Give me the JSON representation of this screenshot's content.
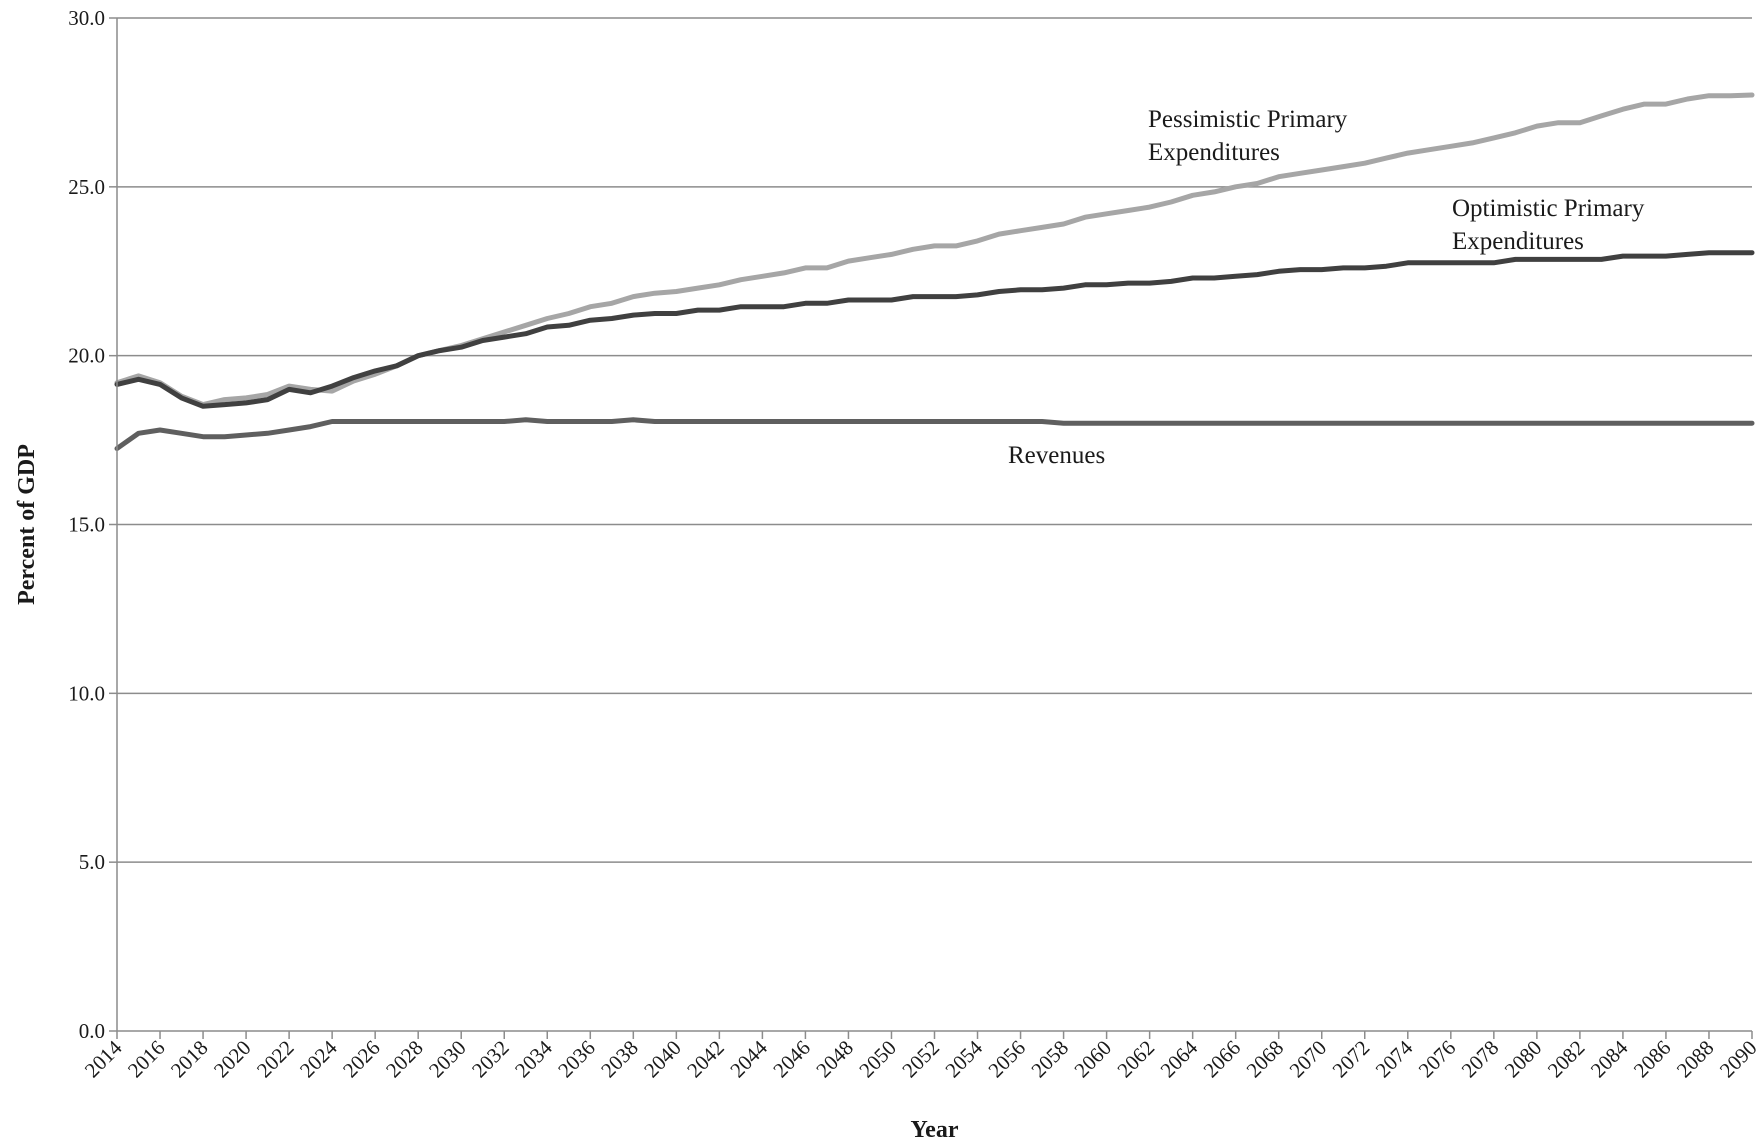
{
  "chart_data": {
    "type": "line",
    "title": "",
    "xlabel": "Year",
    "ylabel": "Percent of GDP",
    "xlim": [
      2014,
      2090
    ],
    "ylim": [
      0,
      30
    ],
    "y_ticks": [
      "0.0",
      "5.0",
      "10.0",
      "15.0",
      "20.0",
      "25.0",
      "30.0"
    ],
    "x_ticks": [
      "2014",
      "2016",
      "2018",
      "2020",
      "2022",
      "2024",
      "2026",
      "2028",
      "2030",
      "2032",
      "2034",
      "2036",
      "2038",
      "2040",
      "2042",
      "2044",
      "2046",
      "2048",
      "2050",
      "2052",
      "2054",
      "2056",
      "2058",
      "2060",
      "2062",
      "2064",
      "2066",
      "2068",
      "2070",
      "2072",
      "2074",
      "2076",
      "2078",
      "2080",
      "2082",
      "2084",
      "2086",
      "2088",
      "2090"
    ],
    "grid": "horizontal",
    "legend": "none",
    "series": [
      {
        "name": "Pessimistic Primary Expenditures",
        "label_lines": [
          "Pessimistic Primary",
          "Expenditures"
        ],
        "color": "#a6a6a6",
        "points": [
          [
            2014,
            19.2
          ],
          [
            2015,
            19.4
          ],
          [
            2016,
            19.2
          ],
          [
            2017,
            18.8
          ],
          [
            2018,
            18.55
          ],
          [
            2019,
            18.7
          ],
          [
            2020,
            18.75
          ],
          [
            2021,
            18.85
          ],
          [
            2022,
            19.1
          ],
          [
            2023,
            19.0
          ],
          [
            2024,
            18.95
          ],
          [
            2025,
            19.25
          ],
          [
            2026,
            19.45
          ],
          [
            2027,
            19.7
          ],
          [
            2028,
            20.0
          ],
          [
            2029,
            20.15
          ],
          [
            2030,
            20.3
          ],
          [
            2031,
            20.5
          ],
          [
            2032,
            20.7
          ],
          [
            2033,
            20.9
          ],
          [
            2034,
            21.1
          ],
          [
            2035,
            21.25
          ],
          [
            2036,
            21.45
          ],
          [
            2037,
            21.55
          ],
          [
            2038,
            21.75
          ],
          [
            2039,
            21.85
          ],
          [
            2040,
            21.9
          ],
          [
            2041,
            22.0
          ],
          [
            2042,
            22.1
          ],
          [
            2043,
            22.25
          ],
          [
            2044,
            22.35
          ],
          [
            2045,
            22.45
          ],
          [
            2046,
            22.6
          ],
          [
            2047,
            22.6
          ],
          [
            2048,
            22.8
          ],
          [
            2049,
            22.9
          ],
          [
            2050,
            23.0
          ],
          [
            2051,
            23.15
          ],
          [
            2052,
            23.25
          ],
          [
            2053,
            23.25
          ],
          [
            2054,
            23.4
          ],
          [
            2055,
            23.6
          ],
          [
            2056,
            23.7
          ],
          [
            2057,
            23.8
          ],
          [
            2058,
            23.9
          ],
          [
            2059,
            24.1
          ],
          [
            2060,
            24.2
          ],
          [
            2061,
            24.3
          ],
          [
            2062,
            24.4
          ],
          [
            2063,
            24.55
          ],
          [
            2064,
            24.75
          ],
          [
            2065,
            24.85
          ],
          [
            2066,
            25.0
          ],
          [
            2067,
            25.1
          ],
          [
            2068,
            25.3
          ],
          [
            2069,
            25.4
          ],
          [
            2070,
            25.5
          ],
          [
            2071,
            25.6
          ],
          [
            2072,
            25.7
          ],
          [
            2073,
            25.85
          ],
          [
            2074,
            26.0
          ],
          [
            2075,
            26.1
          ],
          [
            2076,
            26.2
          ],
          [
            2077,
            26.3
          ],
          [
            2078,
            26.45
          ],
          [
            2079,
            26.6
          ],
          [
            2080,
            26.8
          ],
          [
            2081,
            26.9
          ],
          [
            2082,
            26.9
          ],
          [
            2083,
            27.1
          ],
          [
            2084,
            27.3
          ],
          [
            2085,
            27.45
          ],
          [
            2086,
            27.45
          ],
          [
            2087,
            27.6
          ],
          [
            2088,
            27.7
          ],
          [
            2089,
            27.7
          ],
          [
            2090,
            27.72
          ]
        ]
      },
      {
        "name": "Optimistic Primary Expenditures",
        "label_lines": [
          "Optimistic Primary",
          "Expenditures"
        ],
        "color": "#404040",
        "points": [
          [
            2014,
            19.15
          ],
          [
            2015,
            19.3
          ],
          [
            2016,
            19.15
          ],
          [
            2017,
            18.75
          ],
          [
            2018,
            18.5
          ],
          [
            2019,
            18.55
          ],
          [
            2020,
            18.6
          ],
          [
            2021,
            18.7
          ],
          [
            2022,
            19.0
          ],
          [
            2023,
            18.9
          ],
          [
            2024,
            19.1
          ],
          [
            2025,
            19.35
          ],
          [
            2026,
            19.55
          ],
          [
            2027,
            19.7
          ],
          [
            2028,
            20.0
          ],
          [
            2029,
            20.15
          ],
          [
            2030,
            20.25
          ],
          [
            2031,
            20.45
          ],
          [
            2032,
            20.55
          ],
          [
            2033,
            20.65
          ],
          [
            2034,
            20.85
          ],
          [
            2035,
            20.9
          ],
          [
            2036,
            21.05
          ],
          [
            2037,
            21.1
          ],
          [
            2038,
            21.2
          ],
          [
            2039,
            21.25
          ],
          [
            2040,
            21.25
          ],
          [
            2041,
            21.35
          ],
          [
            2042,
            21.35
          ],
          [
            2043,
            21.45
          ],
          [
            2044,
            21.45
          ],
          [
            2045,
            21.45
          ],
          [
            2046,
            21.55
          ],
          [
            2047,
            21.55
          ],
          [
            2048,
            21.65
          ],
          [
            2049,
            21.65
          ],
          [
            2050,
            21.65
          ],
          [
            2051,
            21.75
          ],
          [
            2052,
            21.75
          ],
          [
            2053,
            21.75
          ],
          [
            2054,
            21.8
          ],
          [
            2055,
            21.9
          ],
          [
            2056,
            21.95
          ],
          [
            2057,
            21.95
          ],
          [
            2058,
            22.0
          ],
          [
            2059,
            22.1
          ],
          [
            2060,
            22.1
          ],
          [
            2061,
            22.15
          ],
          [
            2062,
            22.15
          ],
          [
            2063,
            22.2
          ],
          [
            2064,
            22.3
          ],
          [
            2065,
            22.3
          ],
          [
            2066,
            22.35
          ],
          [
            2067,
            22.4
          ],
          [
            2068,
            22.5
          ],
          [
            2069,
            22.55
          ],
          [
            2070,
            22.55
          ],
          [
            2071,
            22.6
          ],
          [
            2072,
            22.6
          ],
          [
            2073,
            22.65
          ],
          [
            2074,
            22.75
          ],
          [
            2075,
            22.75
          ],
          [
            2076,
            22.75
          ],
          [
            2077,
            22.75
          ],
          [
            2078,
            22.75
          ],
          [
            2079,
            22.85
          ],
          [
            2080,
            22.85
          ],
          [
            2081,
            22.85
          ],
          [
            2082,
            22.85
          ],
          [
            2083,
            22.85
          ],
          [
            2084,
            22.95
          ],
          [
            2085,
            22.95
          ],
          [
            2086,
            22.95
          ],
          [
            2087,
            23.0
          ],
          [
            2088,
            23.05
          ],
          [
            2089,
            23.05
          ],
          [
            2090,
            23.05
          ]
        ]
      },
      {
        "name": "Revenues",
        "label_lines": [
          "Revenues"
        ],
        "color": "#5f5f5f",
        "points": [
          [
            2014,
            17.25
          ],
          [
            2015,
            17.7
          ],
          [
            2016,
            17.8
          ],
          [
            2017,
            17.7
          ],
          [
            2018,
            17.6
          ],
          [
            2019,
            17.6
          ],
          [
            2020,
            17.65
          ],
          [
            2021,
            17.7
          ],
          [
            2022,
            17.8
          ],
          [
            2023,
            17.9
          ],
          [
            2024,
            18.05
          ],
          [
            2025,
            18.05
          ],
          [
            2026,
            18.05
          ],
          [
            2027,
            18.05
          ],
          [
            2028,
            18.05
          ],
          [
            2029,
            18.05
          ],
          [
            2030,
            18.05
          ],
          [
            2031,
            18.05
          ],
          [
            2032,
            18.05
          ],
          [
            2033,
            18.1
          ],
          [
            2034,
            18.05
          ],
          [
            2035,
            18.05
          ],
          [
            2036,
            18.05
          ],
          [
            2037,
            18.05
          ],
          [
            2038,
            18.1
          ],
          [
            2039,
            18.05
          ],
          [
            2040,
            18.05
          ],
          [
            2041,
            18.05
          ],
          [
            2042,
            18.05
          ],
          [
            2043,
            18.05
          ],
          [
            2044,
            18.05
          ],
          [
            2045,
            18.05
          ],
          [
            2046,
            18.05
          ],
          [
            2047,
            18.05
          ],
          [
            2048,
            18.05
          ],
          [
            2049,
            18.05
          ],
          [
            2050,
            18.05
          ],
          [
            2051,
            18.05
          ],
          [
            2052,
            18.05
          ],
          [
            2053,
            18.05
          ],
          [
            2054,
            18.05
          ],
          [
            2055,
            18.05
          ],
          [
            2056,
            18.05
          ],
          [
            2057,
            18.05
          ],
          [
            2058,
            18.0
          ],
          [
            2059,
            18.0
          ],
          [
            2060,
            18.0
          ],
          [
            2061,
            18.0
          ],
          [
            2062,
            18.0
          ],
          [
            2063,
            18.0
          ],
          [
            2064,
            18.0
          ],
          [
            2065,
            18.0
          ],
          [
            2066,
            18.0
          ],
          [
            2067,
            18.0
          ],
          [
            2068,
            18.0
          ],
          [
            2069,
            18.0
          ],
          [
            2070,
            18.0
          ],
          [
            2071,
            18.0
          ],
          [
            2072,
            18.0
          ],
          [
            2073,
            18.0
          ],
          [
            2074,
            18.0
          ],
          [
            2075,
            18.0
          ],
          [
            2076,
            18.0
          ],
          [
            2077,
            18.0
          ],
          [
            2078,
            18.0
          ],
          [
            2079,
            18.0
          ],
          [
            2080,
            18.0
          ],
          [
            2081,
            18.0
          ],
          [
            2082,
            18.0
          ],
          [
            2083,
            18.0
          ],
          [
            2084,
            18.0
          ],
          [
            2085,
            18.0
          ],
          [
            2086,
            18.0
          ],
          [
            2087,
            18.0
          ],
          [
            2088,
            18.0
          ],
          [
            2089,
            18.0
          ],
          [
            2090,
            18.0
          ]
        ]
      }
    ]
  }
}
